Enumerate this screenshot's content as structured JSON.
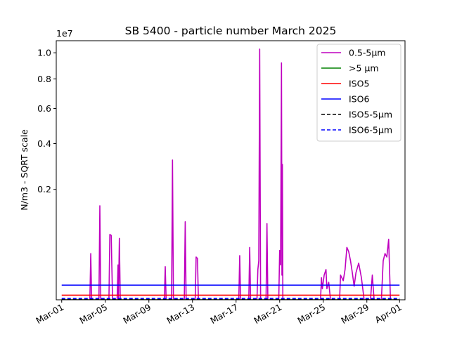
{
  "chart_data": {
    "type": "line",
    "title": "SB 5400 - particle number March 2025",
    "ylabel": "N/m3 - SQRT scale",
    "xlabel": "",
    "y_scale": "sqrt",
    "y_multiplier_label": "1e7",
    "ylim": [
      0,
      11000000
    ],
    "xlim": [
      "2025-02-28T12:00",
      "2025-04-01T12:00"
    ],
    "x_ticks": [
      {
        "date": "2025-03-01",
        "label": "Mar-01"
      },
      {
        "date": "2025-03-05",
        "label": "Mar-05"
      },
      {
        "date": "2025-03-09",
        "label": "Mar-09"
      },
      {
        "date": "2025-03-13",
        "label": "Mar-13"
      },
      {
        "date": "2025-03-17",
        "label": "Mar-17"
      },
      {
        "date": "2025-03-21",
        "label": "Mar-21"
      },
      {
        "date": "2025-03-25",
        "label": "Mar-25"
      },
      {
        "date": "2025-03-29",
        "label": "Mar-29"
      },
      {
        "date": "2025-04-01",
        "label": "Apr-01"
      }
    ],
    "y_ticks": [
      {
        "value": 2000000,
        "label": "0.2"
      },
      {
        "value": 4000000,
        "label": "0.4"
      },
      {
        "value": 6000000,
        "label": "0.6"
      },
      {
        "value": 8000000,
        "label": "0.8"
      },
      {
        "value": 10000000,
        "label": "1.0"
      }
    ],
    "legend_position": "top-right",
    "series": [
      {
        "name": "0.5-5µm",
        "color": "#bf00bf",
        "dash": "solid",
        "points": [
          [
            "2025-03-01T00:00",
            0
          ],
          [
            "2025-03-03T12:00",
            0
          ],
          [
            "2025-03-03T14:00",
            0
          ],
          [
            "2025-03-03T16:00",
            350000
          ],
          [
            "2025-03-03T18:00",
            0
          ],
          [
            "2025-03-04T10:00",
            0
          ],
          [
            "2025-03-04T12:00",
            1450000
          ],
          [
            "2025-03-04T14:00",
            0
          ],
          [
            "2025-03-05T08:00",
            0
          ],
          [
            "2025-03-05T10:00",
            700000
          ],
          [
            "2025-03-05T13:00",
            680000
          ],
          [
            "2025-03-05T16:00",
            0
          ],
          [
            "2025-03-06T02:00",
            0
          ],
          [
            "2025-03-06T04:00",
            200000
          ],
          [
            "2025-03-06T05:00",
            0
          ],
          [
            "2025-03-06T07:00",
            620000
          ],
          [
            "2025-03-06T09:00",
            0
          ],
          [
            "2025-03-10T10:00",
            0
          ],
          [
            "2025-03-10T12:00",
            180000
          ],
          [
            "2025-03-10T14:00",
            0
          ],
          [
            "2025-03-11T02:00",
            0
          ],
          [
            "2025-03-11T04:00",
            3200000
          ],
          [
            "2025-03-11T06:00",
            0
          ],
          [
            "2025-03-12T06:00",
            0
          ],
          [
            "2025-03-12T08:00",
            1000000
          ],
          [
            "2025-03-12T10:00",
            0
          ],
          [
            "2025-03-13T06:00",
            0
          ],
          [
            "2025-03-13T08:00",
            300000
          ],
          [
            "2025-03-13T11:00",
            280000
          ],
          [
            "2025-03-13T13:00",
            0
          ],
          [
            "2025-03-17T06:00",
            0
          ],
          [
            "2025-03-17T08:00",
            320000
          ],
          [
            "2025-03-17T10:00",
            0
          ],
          [
            "2025-03-18T04:00",
            0
          ],
          [
            "2025-03-18T06:00",
            450000
          ],
          [
            "2025-03-18T08:00",
            0
          ],
          [
            "2025-03-18T22:00",
            0
          ],
          [
            "2025-03-19T00:00",
            150000
          ],
          [
            "2025-03-19T02:00",
            250000
          ],
          [
            "2025-03-19T04:00",
            10300000
          ],
          [
            "2025-03-19T06:00",
            0
          ],
          [
            "2025-03-19T18:00",
            0
          ],
          [
            "2025-03-19T20:00",
            950000
          ],
          [
            "2025-03-19T22:00",
            0
          ],
          [
            "2025-03-20T22:00",
            0
          ],
          [
            "2025-03-21T00:00",
            400000
          ],
          [
            "2025-03-21T02:00",
            200000
          ],
          [
            "2025-03-21T04:00",
            9200000
          ],
          [
            "2025-03-21T05:00",
            100000
          ],
          [
            "2025-03-21T06:00",
            3000000
          ],
          [
            "2025-03-21T07:00",
            0
          ],
          [
            "2025-03-24T18:00",
            0
          ],
          [
            "2025-03-24T20:00",
            80000
          ],
          [
            "2025-03-24T22:00",
            20000
          ],
          [
            "2025-03-25T02:00",
            100000
          ],
          [
            "2025-03-25T06:00",
            150000
          ],
          [
            "2025-03-25T08:00",
            20000
          ],
          [
            "2025-03-25T12:00",
            50000
          ],
          [
            "2025-03-25T16:00",
            0
          ],
          [
            "2025-03-26T12:00",
            0
          ],
          [
            "2025-03-26T14:00",
            100000
          ],
          [
            "2025-03-26T20:00",
            60000
          ],
          [
            "2025-03-27T00:00",
            150000
          ],
          [
            "2025-03-27T04:00",
            450000
          ],
          [
            "2025-03-27T08:00",
            380000
          ],
          [
            "2025-03-27T12:00",
            250000
          ],
          [
            "2025-03-27T16:00",
            120000
          ],
          [
            "2025-03-27T20:00",
            30000
          ],
          [
            "2025-03-28T00:00",
            120000
          ],
          [
            "2025-03-28T06:00",
            220000
          ],
          [
            "2025-03-28T12:00",
            80000
          ],
          [
            "2025-03-28T18:00",
            0
          ],
          [
            "2025-03-29T08:00",
            0
          ],
          [
            "2025-03-29T12:00",
            100000
          ],
          [
            "2025-03-29T16:00",
            0
          ],
          [
            "2025-03-30T08:00",
            0
          ],
          [
            "2025-03-30T12:00",
            250000
          ],
          [
            "2025-03-30T16:00",
            350000
          ],
          [
            "2025-03-30T20:00",
            300000
          ],
          [
            "2025-03-31T00:00",
            600000
          ],
          [
            "2025-03-31T04:00",
            0
          ],
          [
            "2025-04-01T00:00",
            0
          ]
        ]
      },
      {
        "name": ">5 µm",
        "color": "#008000",
        "dash": "solid",
        "points": [
          [
            "2025-03-01T00:00",
            0
          ],
          [
            "2025-04-01T00:00",
            0
          ]
        ]
      },
      {
        "name": "ISO5",
        "color": "#ff0000",
        "dash": "solid",
        "points": [
          [
            "2025-03-01T00:00",
            3520
          ],
          [
            "2025-04-01T00:00",
            3520
          ]
        ]
      },
      {
        "name": "ISO6",
        "color": "#0000ff",
        "dash": "solid",
        "points": [
          [
            "2025-03-01T00:00",
            35200
          ],
          [
            "2025-04-01T00:00",
            35200
          ]
        ]
      },
      {
        "name": "ISO5-5µm",
        "color": "#000000",
        "dash": "dashed",
        "points": [
          [
            "2025-03-01T00:00",
            29
          ],
          [
            "2025-04-01T00:00",
            29
          ]
        ]
      },
      {
        "name": "ISO6-5µm",
        "color": "#0000ff",
        "dash": "dashed",
        "points": [
          [
            "2025-03-01T00:00",
            293
          ],
          [
            "2025-04-01T00:00",
            293
          ]
        ]
      }
    ]
  }
}
